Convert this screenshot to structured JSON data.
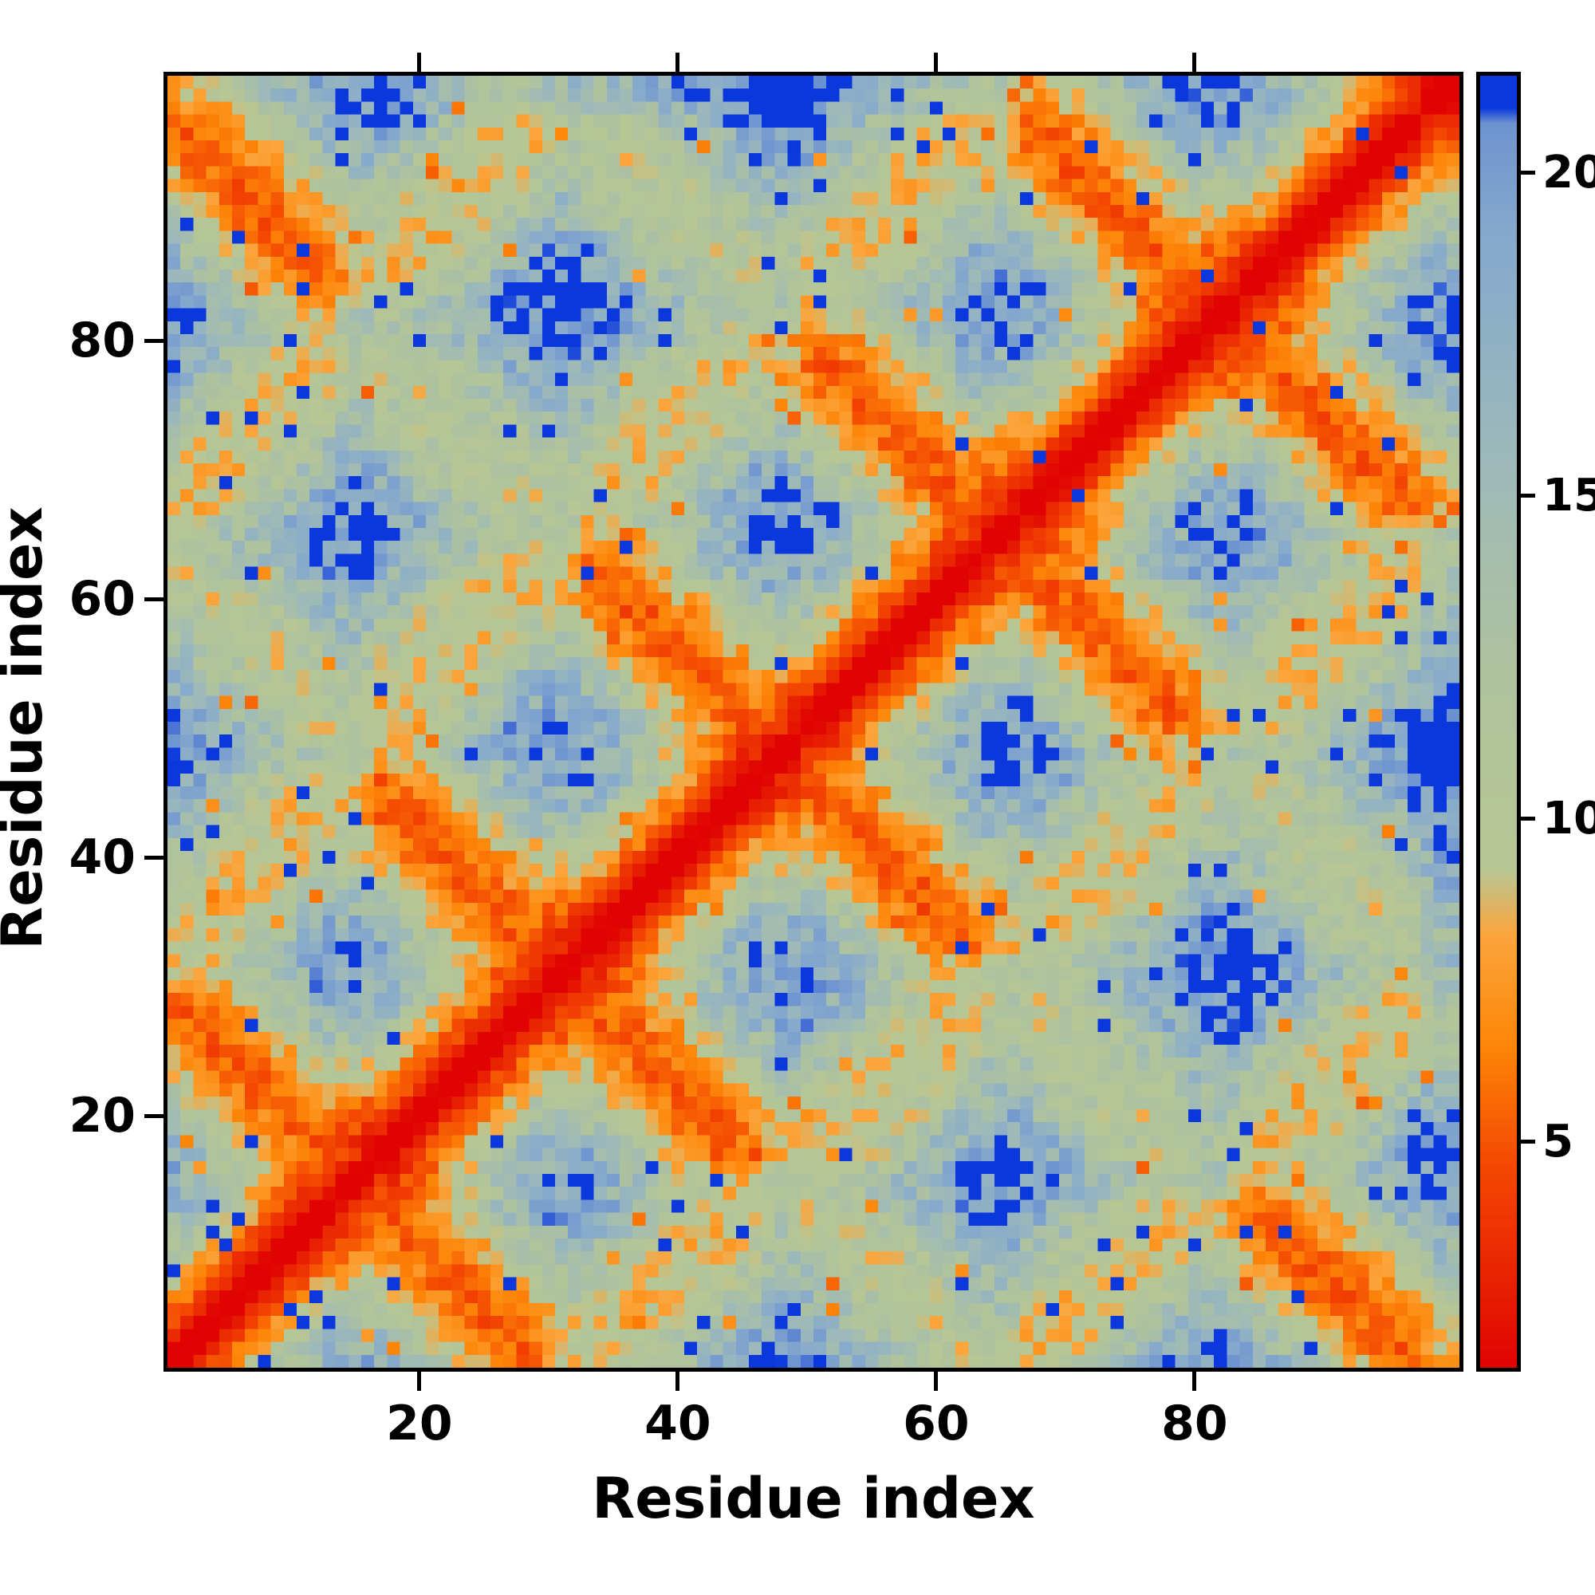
{
  "chart_data": {
    "type": "heatmap",
    "title": "",
    "xlabel": "Residue index",
    "ylabel": "Residue index",
    "x_range": [
      1,
      100
    ],
    "y_range": [
      1,
      100
    ],
    "x_ticks": [
      20,
      40,
      60,
      80
    ],
    "y_ticks": [
      20,
      40,
      60,
      80
    ],
    "grid": false,
    "legend": "colorbar-right",
    "colorbar": {
      "vmin": 1.5,
      "vmax": 21.5,
      "ticks": [
        5,
        10,
        15,
        20
      ],
      "colormap_stops": [
        [
          0.0,
          "#e00302"
        ],
        [
          0.16,
          "#f44a02"
        ],
        [
          0.25,
          "#fd8608"
        ],
        [
          0.335,
          "#fba53c"
        ],
        [
          0.385,
          "#b8c693"
        ],
        [
          0.55,
          "#adc29f"
        ],
        [
          0.7,
          "#9db9b9"
        ],
        [
          0.88,
          "#85a8cd"
        ],
        [
          0.963,
          "#6d94cf"
        ],
        [
          0.975,
          "#0b38dd"
        ],
        [
          1.0,
          "#0b38dd"
        ]
      ]
    },
    "structure": {
      "description": "pairwise residue distance matrix, red diagonal (short distances), antiparallel segment contacts as orange anti-diagonal streaks, distant pairs deep blue (clipped at vmax)",
      "n_residues": 100,
      "radius": 5.2,
      "rise": 1.42,
      "strands": [
        {
          "start": 1,
          "end": 13,
          "angle": 0,
          "up": true
        },
        {
          "start": 17,
          "end": 29,
          "angle": 60,
          "up": false
        },
        {
          "start": 33,
          "end": 46,
          "angle": 120,
          "up": true
        },
        {
          "start": 50,
          "end": 63,
          "angle": 180,
          "up": false
        },
        {
          "start": 67,
          "end": 80,
          "angle": 240,
          "up": true
        },
        {
          "start": 84,
          "end": 97,
          "angle": 300,
          "up": false
        }
      ],
      "turn_bulge": 2.5,
      "noise": {
        "amp": 0.22,
        "blue_speckle": 0.018,
        "orange_speckle": 0.016
      }
    }
  }
}
